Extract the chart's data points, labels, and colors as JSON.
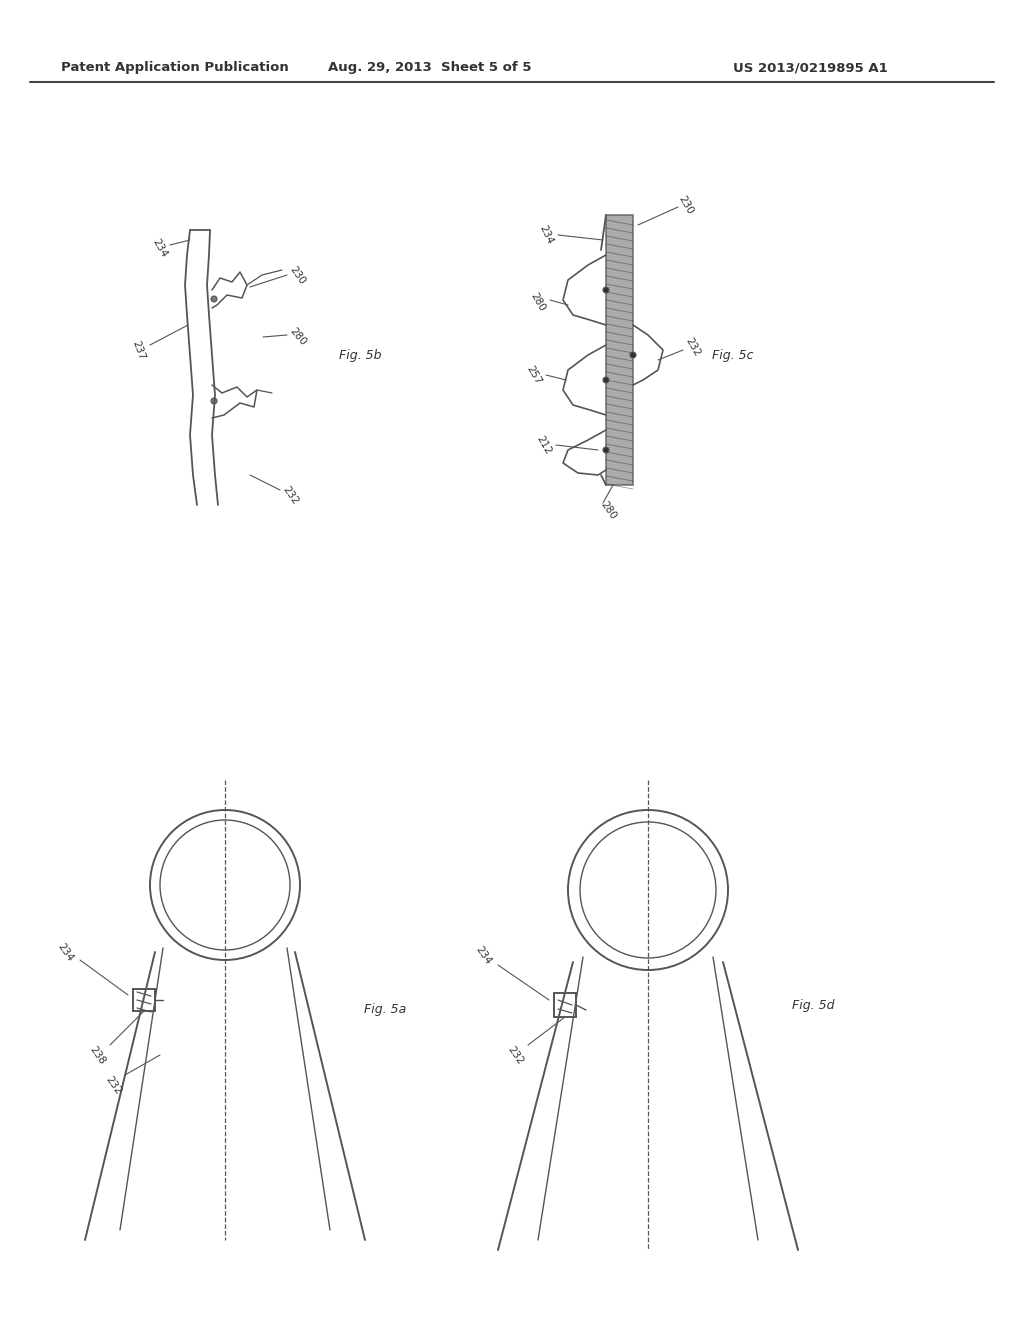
{
  "header_left": "Patent Application Publication",
  "header_center": "Aug. 29, 2013  Sheet 5 of 5",
  "header_right": "US 2013/0219895 A1",
  "background_color": "#ffffff",
  "line_color": "#555555",
  "text_color": "#333333",
  "fig5b_label": "Fig. 5b",
  "fig5c_label": "Fig. 5c",
  "fig5a_label": "Fig. 5a",
  "fig5d_label": "Fig. 5d"
}
